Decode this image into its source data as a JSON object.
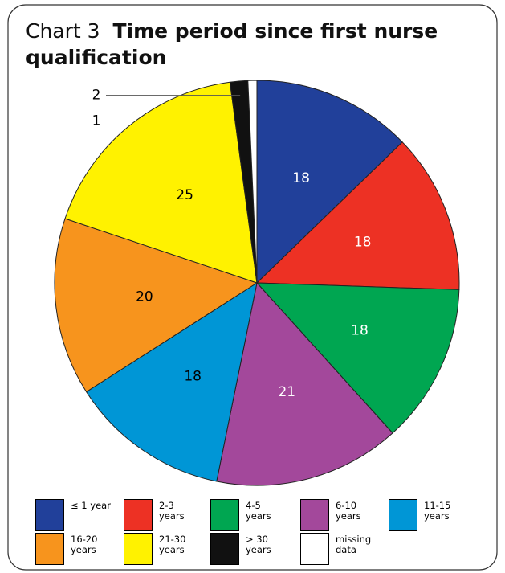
{
  "chart_data": {
    "type": "pie",
    "chart_label": "Chart 3",
    "title": "Time period since first nurse qualification",
    "categories": [
      "≤ 1 year",
      "2-3 years",
      "4-5 years",
      "6-10 years",
      "11-15 years",
      "16-20 years",
      "21-30 years",
      "> 30 years",
      "missing data"
    ],
    "values": [
      18,
      18,
      18,
      21,
      18,
      20,
      25,
      2,
      1
    ],
    "colors": [
      "#21409a",
      "#ed3124",
      "#00a651",
      "#a3489b",
      "#0096d6",
      "#f7941d",
      "#fff200",
      "#111111",
      "#ffffff"
    ],
    "label_colors": [
      "#ffffff",
      "#ffffff",
      "#ffffff",
      "#ffffff",
      "#000000",
      "#000000",
      "#000000",
      "#000000",
      "#000000"
    ],
    "legend": "bottom"
  }
}
